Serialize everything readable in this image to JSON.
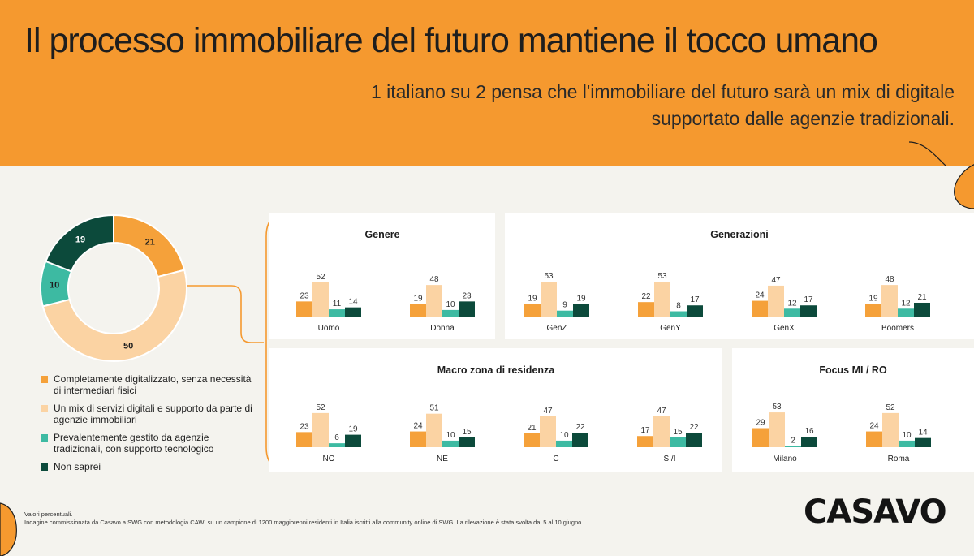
{
  "header": {
    "title": "Il processo immobiliare del futuro mantiene il tocco umano",
    "subtitle": "1 italiano su 2 pensa che l'immobiliare del futuro sarà un mix di digitale supportato dalle agenzie tradizionali."
  },
  "colors": {
    "header_bg": "#f5992f",
    "page_bg": "#f4f3ee",
    "series": [
      "#f5a13a",
      "#fbd3a3",
      "#3dbaa2",
      "#0c4a3b"
    ]
  },
  "legend": [
    {
      "label": "Completamente digitalizzato, senza necessità di intermediari fisici"
    },
    {
      "label": "Un mix di servizi digitali e supporto da parte di agenzie immobiliari"
    },
    {
      "label": "Prevalentemente gestito da agenzie tradizionali, con supporto tecnologico"
    },
    {
      "label": "Non saprei"
    }
  ],
  "chart_data": [
    {
      "type": "pie",
      "donut": true,
      "labels": [
        "Completamente digitalizzato, senza necessità di intermediari fisici",
        "Un mix di servizi digitali e supporto da parte di agenzie immobiliari",
        "Prevalentemente gestito da agenzie tradizionali, con supporto tecnologico",
        "Non saprei"
      ],
      "values": [
        21,
        50,
        10,
        19
      ]
    },
    {
      "type": "bar",
      "title": "Genere",
      "categories": [
        "Uomo",
        "Donna"
      ],
      "series": [
        {
          "values": [
            23,
            19
          ]
        },
        {
          "values": [
            52,
            48
          ]
        },
        {
          "values": [
            11,
            10
          ]
        },
        {
          "values": [
            14,
            23
          ]
        }
      ]
    },
    {
      "type": "bar",
      "title": "Generazioni",
      "categories": [
        "GenZ",
        "GenY",
        "GenX",
        "Boomers"
      ],
      "series": [
        {
          "values": [
            19,
            22,
            24,
            19
          ]
        },
        {
          "values": [
            53,
            53,
            47,
            48
          ]
        },
        {
          "values": [
            9,
            8,
            12,
            12
          ]
        },
        {
          "values": [
            19,
            17,
            17,
            21
          ]
        }
      ]
    },
    {
      "type": "bar",
      "title": "Macro zona di residenza",
      "categories": [
        "NO",
        "NE",
        "C",
        "S /I"
      ],
      "series": [
        {
          "values": [
            23,
            24,
            21,
            17
          ]
        },
        {
          "values": [
            52,
            51,
            47,
            47
          ]
        },
        {
          "values": [
            6,
            10,
            10,
            15
          ]
        },
        {
          "values": [
            19,
            15,
            22,
            22
          ]
        }
      ]
    },
    {
      "type": "bar",
      "title": "Focus MI / RO",
      "categories": [
        "Milano",
        "Roma"
      ],
      "series": [
        {
          "values": [
            29,
            24
          ]
        },
        {
          "values": [
            53,
            52
          ]
        },
        {
          "values": [
            2,
            10
          ]
        },
        {
          "values": [
            16,
            14
          ]
        }
      ]
    }
  ],
  "footnote": {
    "line1": "Valori percentuali.",
    "line2": "Indagine commissionata da Casavo a SWG con metodologia CAWI su un campione di 1200 maggiorenni residenti in Italia iscritti alla community online di SWG. La rilevazione è stata svolta dal 5 al 10 giugno."
  },
  "logo": "CASAVO"
}
